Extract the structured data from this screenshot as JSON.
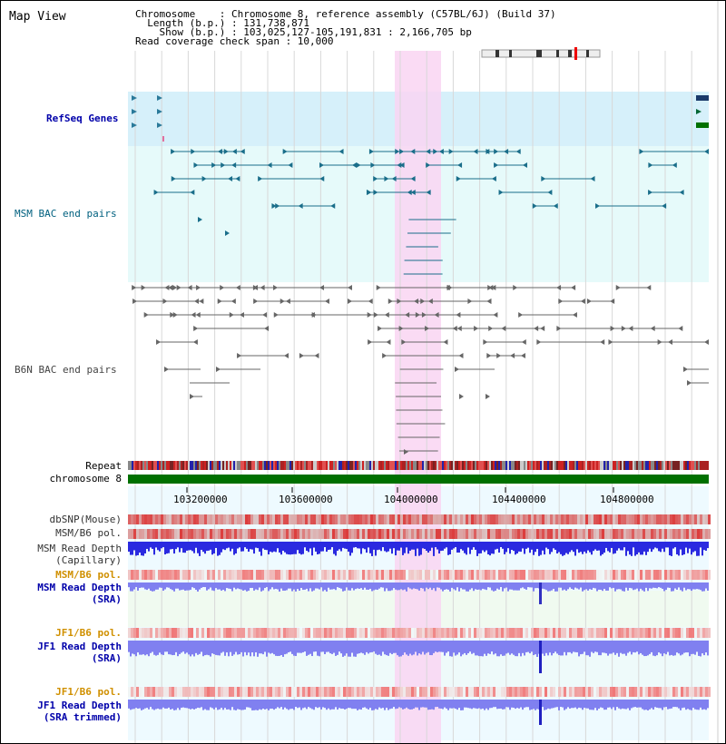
{
  "header": {
    "title": "Map View",
    "chromosome": "Chromosome    : Chromosome 8, reference assembly (C57BL/6J) (Build 37)",
    "length": "  Length (b.p.) : 131,738,871",
    "show": "    Show (b.p.) : 103,025,127-105,191,831 : 2,166,705 bp",
    "coverage": "Read coverage check span : 10,000"
  },
  "tracks": {
    "refseq": "RefSeq Genes",
    "msm_bac": "MSM BAC end pairs",
    "b6n_bac": "B6N BAC end pairs",
    "repeat": "Repeat",
    "chromosome": "chromosome 8",
    "dbsnp": "dbSNP(Mouse)",
    "msm_b6_pol": "MSM/B6 pol.",
    "msm_depth_cap_1": "MSM Read Depth",
    "msm_depth_cap_2": "(Capillary)",
    "msm_b6_pol2": "MSM/B6 pol.",
    "msm_depth_sra_1": "MSM Read Depth",
    "msm_depth_sra_2": "(SRA)",
    "jf1_b6_pol": "JF1/B6 pol.",
    "jf1_depth_sra_1": "JF1 Read Depth",
    "jf1_depth_sra_2": "(SRA)",
    "jf1_b6_pol2": "JF1/B6 pol.",
    "jf1_depth_trim_1": "JF1 Read Depth",
    "jf1_depth_trim_2": "(SRA trimmed)"
  },
  "axis": {
    "ticks": [
      "103200000",
      "103600000",
      "104000000",
      "104400000",
      "104800000"
    ]
  },
  "colors": {
    "refseq_band": "#d6f0fa",
    "msm_band": "#e6fafa",
    "b6n_band": "#f5f5f5",
    "highlight": "#f9d5f2",
    "chrom_bar": "#007000",
    "msm_line": "#1a6e8a",
    "b6n_line": "#666666",
    "depth_blue": "#2a2ae0",
    "depth_light": "#8080f0",
    "label_blue": "#0000aa",
    "label_teal": "#00607f",
    "label_orange": "#d09000"
  }
}
